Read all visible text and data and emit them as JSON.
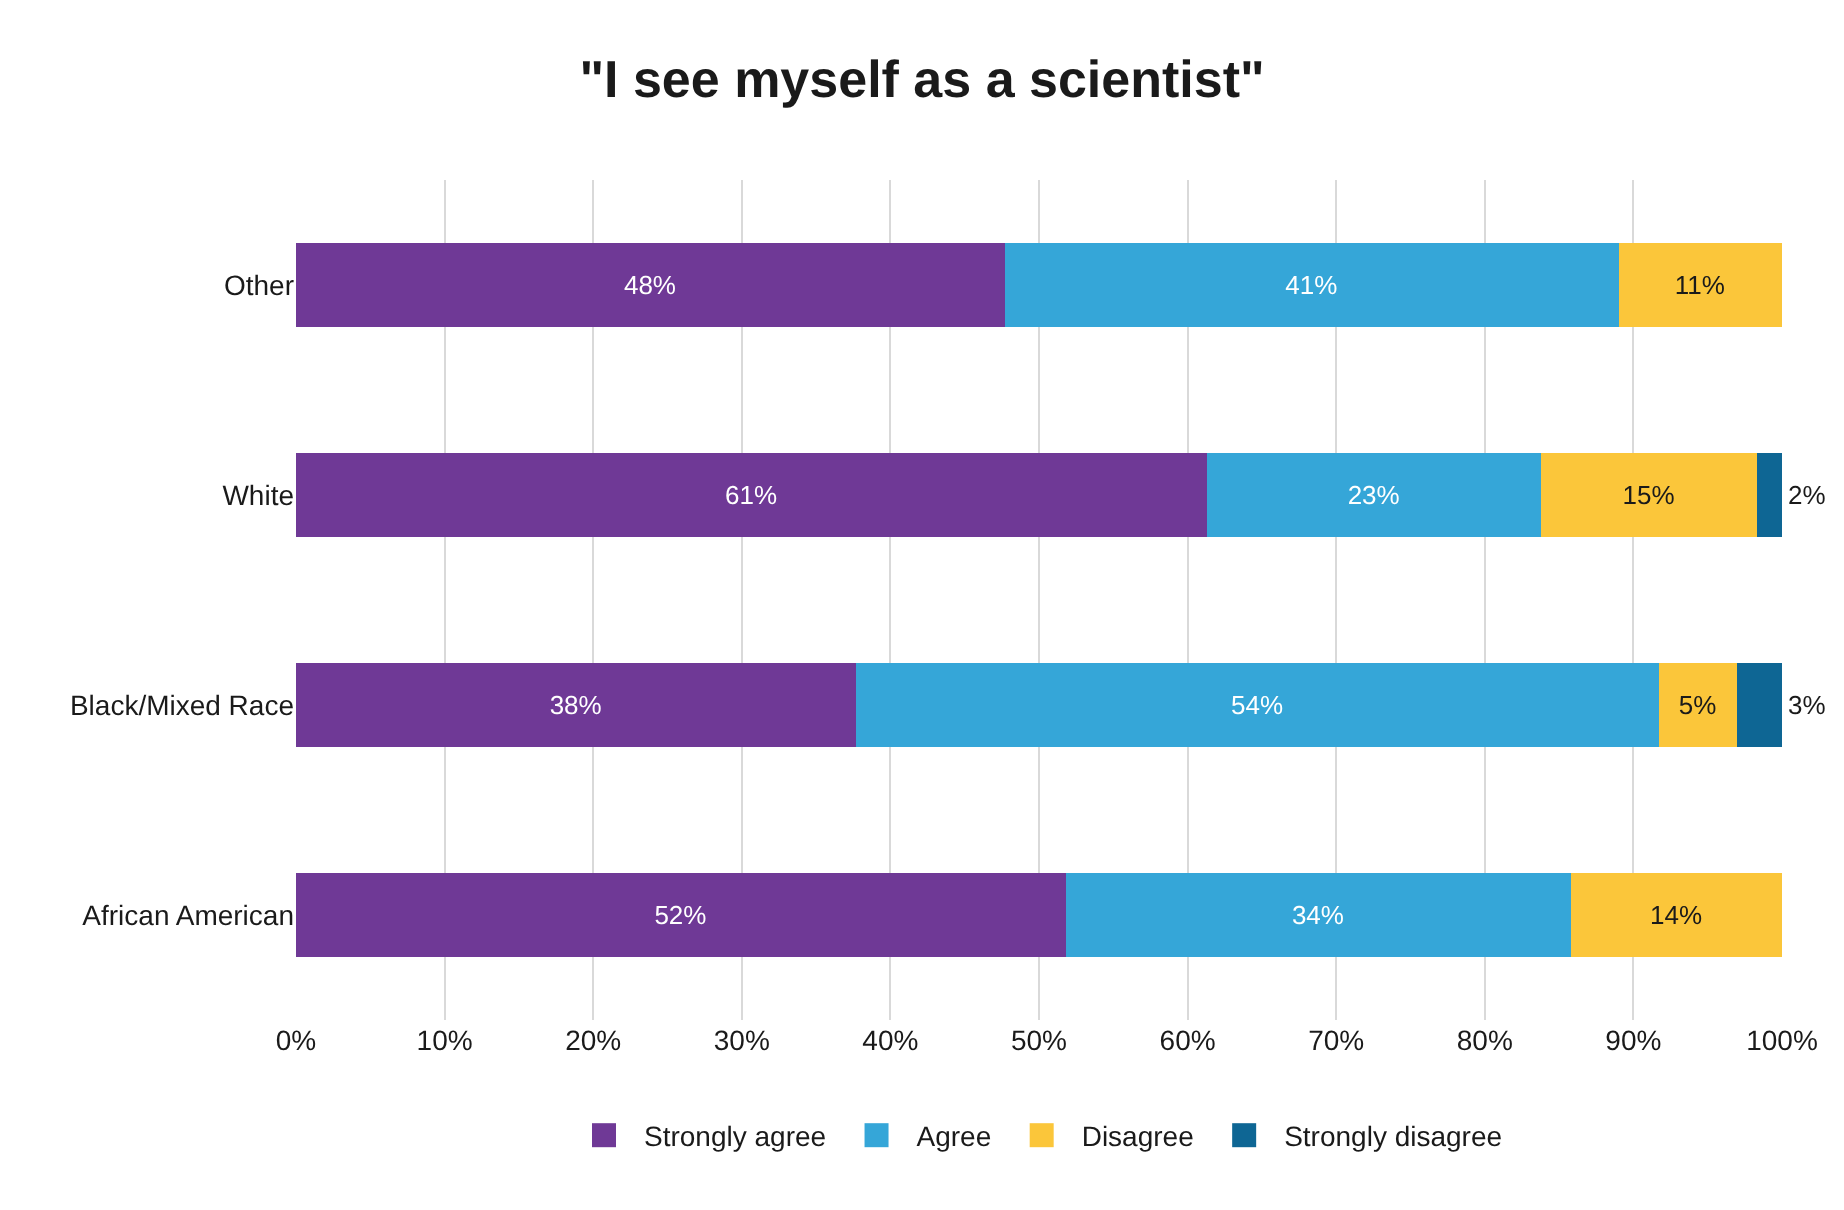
{
  "chart_data": {
    "type": "bar",
    "title": "\"I see myself as a scientist\"",
    "orientation": "horizontal",
    "stacked": true,
    "categories": [
      "Other",
      "White",
      "Black/Mixed Race",
      "African American"
    ],
    "series": [
      {
        "name": "Strongly agree",
        "color": "#6f3996",
        "values": [
          47.7,
          61.3,
          37.7,
          51.8
        ],
        "value_labels": [
          "48%",
          "61%",
          "38%",
          "52%"
        ]
      },
      {
        "name": "Agree",
        "color": "#35a6d8",
        "values": [
          41.3,
          22.5,
          54,
          34
        ],
        "value_labels": [
          "41%",
          "23%",
          "54%",
          "34%"
        ]
      },
      {
        "name": "Disagree",
        "color": "#fbc63a",
        "values": [
          11,
          14.5,
          5.3,
          14.2
        ],
        "value_labels": [
          "11%",
          "15%",
          "5%",
          "14%"
        ]
      },
      {
        "name": "Strongly disagree",
        "color": "#0e6694",
        "values": [
          null,
          1.7,
          3,
          null
        ],
        "value_labels": [
          null,
          "2%",
          "3%",
          null
        ]
      }
    ],
    "xlim": [
      0,
      100
    ],
    "xticks": [
      {
        "value": 0,
        "label": "0%"
      },
      {
        "value": 10,
        "label": "10%"
      },
      {
        "value": 20,
        "label": "20%"
      },
      {
        "value": 30,
        "label": "30%"
      },
      {
        "value": 40,
        "label": "40%"
      },
      {
        "value": 50,
        "label": "50%"
      },
      {
        "value": 60,
        "label": "60%"
      },
      {
        "value": 70,
        "label": "70%"
      },
      {
        "value": 80,
        "label": "80%"
      },
      {
        "value": 90,
        "label": "90%"
      },
      {
        "value": 100,
        "label": "100%"
      }
    ],
    "grid": "x",
    "legend": "bottom"
  }
}
